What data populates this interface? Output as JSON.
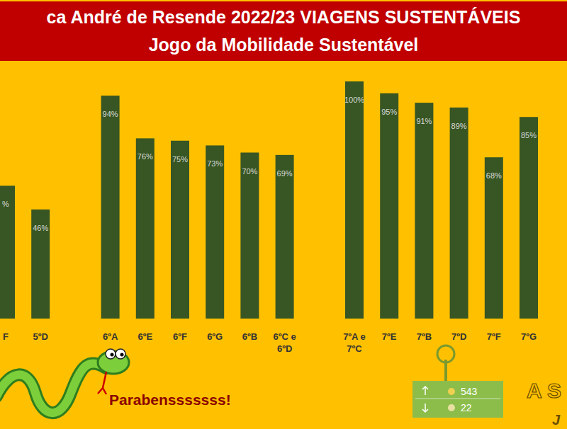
{
  "chart_data": {
    "type": "bar",
    "title": "ca André de Resende 2022/23 VIAGENS SUSTENTÁVEIS",
    "subtitle": "Jogo da Mobilidade Sustentável",
    "categories": [
      "F",
      "5ºD",
      null,
      "6ºA",
      "6ºE",
      "6ºF",
      "6ºG",
      "6ºB",
      "6ºC e 6ºD",
      null,
      "7ºA e 7ºC",
      "7ºE",
      "7ºB",
      "7ºD",
      "7ºF",
      "7ºG"
    ],
    "values": [
      56,
      46,
      null,
      94,
      76,
      75,
      73,
      70,
      69,
      null,
      100,
      95,
      91,
      89,
      68,
      85
    ],
    "value_labels": [
      "%",
      "46%",
      null,
      "94%",
      "76%",
      "75%",
      "73%",
      "70%",
      "69%",
      null,
      "100%",
      "95%",
      "91%",
      "89%",
      "68%",
      "85%"
    ],
    "color": "#375623",
    "ylim": [
      0,
      100
    ],
    "data_labels": true,
    "tick_labels": "x",
    "grid": false,
    "annotations": [
      "Parabensssssss!",
      "A S",
      "J"
    ],
    "counter": {
      "up": 543,
      "down": 22
    }
  }
}
